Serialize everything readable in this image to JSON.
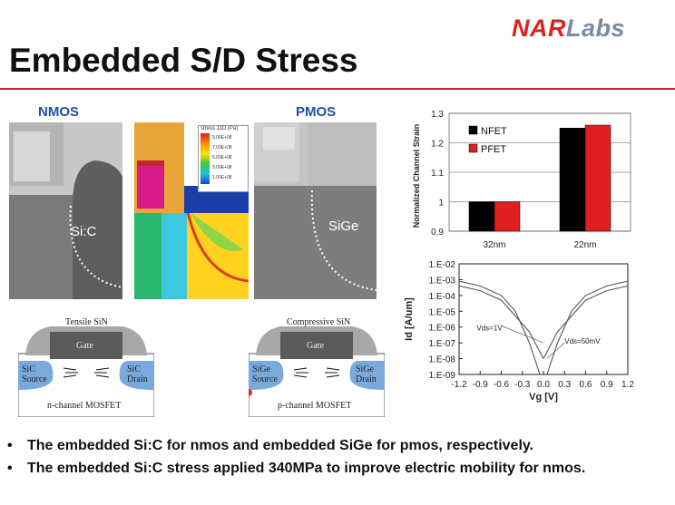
{
  "logo": {
    "part1": "NAR",
    "part2": "Labs"
  },
  "slide": {
    "title": "Embedded S/D Stress",
    "nmos_label": "NMOS",
    "pmos_label": "PMOS",
    "nmos_tem_label": "Si:C",
    "pmos_tem_label": "SiGe",
    "sim_legend_title": "stress 11D (Pa)",
    "sim_legend_values": [
      "9.00E+08",
      "7.00E+08",
      "5.00E+08",
      "3.00E+08",
      "1.00E+08"
    ],
    "nmos_schematic": {
      "top": "Tensile SiN",
      "gate": "Gate",
      "source": [
        "SiC",
        "Source"
      ],
      "drain": [
        "SiC",
        "Drain"
      ],
      "caption": "n-channel MOSFET"
    },
    "pmos_schematic": {
      "top": "Compressive SiN",
      "gate": "Gate",
      "source": [
        "SiGe",
        "Source"
      ],
      "drain": [
        "SiGe",
        "Drain"
      ],
      "caption": "p-channel MOSFET"
    },
    "bullets": [
      "The embedded Si:C for nmos and embedded SiGe for pmos, respectively.",
      "The embedded Si:C stress applied 340MPa to improve electric mobility for nmos."
    ]
  },
  "colors": {
    "accent_red": "#c0272d",
    "label_blue": "#1f4fa8",
    "nfet": "#000000",
    "pfet": "#e02020"
  },
  "chart_data": [
    {
      "type": "bar",
      "categories": [
        "32nm",
        "22nm"
      ],
      "series": [
        {
          "name": "NFET",
          "values": [
            1.0,
            1.25
          ]
        },
        {
          "name": "PFET",
          "values": [
            1.0,
            1.26
          ]
        }
      ],
      "ylabel": "Normalized Channel Strain",
      "ylim": [
        0.9,
        1.3
      ],
      "yticks": [
        "0.9",
        "1",
        "1.1",
        "1.2",
        "1.3"
      ],
      "legend": "top-left",
      "grid": true
    },
    {
      "type": "line",
      "ylabel": "Id  [A/um]",
      "xlabel": "Vg  [V]",
      "xticks": [
        "-1.2",
        "-0.9",
        "-0.6",
        "-0.3",
        "0.0",
        "0.3",
        "0.6",
        "0.9",
        "1.2"
      ],
      "yticks": [
        "1.E-09",
        "1.E-08",
        "1.E-07",
        "1.E-06",
        "1.E-05",
        "1.E-04",
        "1.E-03",
        "1.E-02"
      ],
      "yscale": "log",
      "annotations": [
        "Vds=1V",
        "Vds=50mV"
      ],
      "series": [
        {
          "x": [
            0.05,
            0.2,
            0.4,
            0.6,
            0.9,
            1.2
          ],
          "y": [
            1e-09,
            1e-07,
            1e-05,
            0.0001,
            0.0004,
            0.0008
          ]
        },
        {
          "x": [
            0.0,
            0.2,
            0.4,
            0.6,
            0.9,
            1.2
          ],
          "y": [
            1e-08,
            5e-07,
            5e-06,
            5e-05,
            0.0002,
            0.0004
          ]
        },
        {
          "x": [
            -0.05,
            -0.2,
            -0.4,
            -0.6,
            -0.9,
            -1.2
          ],
          "y": [
            1e-09,
            1e-07,
            1e-05,
            0.0001,
            0.0004,
            0.0008
          ]
        },
        {
          "x": [
            0.0,
            -0.2,
            -0.4,
            -0.6,
            -0.9,
            -1.2
          ],
          "y": [
            1e-08,
            5e-07,
            5e-06,
            5e-05,
            0.0002,
            0.0004
          ]
        }
      ]
    }
  ]
}
